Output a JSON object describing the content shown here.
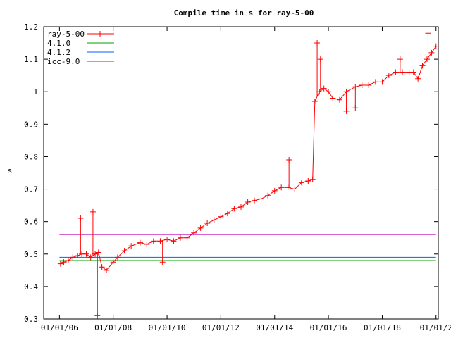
{
  "chart_data": {
    "type": "line",
    "title": "Compile time in s for ray-5-00",
    "xlabel": "",
    "ylabel": "s",
    "ylim": [
      0.3,
      1.2
    ],
    "yticks": [
      "0.3",
      "0.4",
      "0.5",
      "0.6",
      "0.7",
      "0.8",
      "0.9",
      "1",
      "1.1",
      "1.2"
    ],
    "xlim": [
      "2005-06-01",
      "2020-02-01"
    ],
    "xticks": [
      {
        "date": "2006-01-01",
        "label": "01/01/06"
      },
      {
        "date": "2008-01-01",
        "label": "01/01/08"
      },
      {
        "date": "2010-01-01",
        "label": "01/01/10"
      },
      {
        "date": "2012-01-01",
        "label": "01/01/12"
      },
      {
        "date": "2014-01-01",
        "label": "01/01/14"
      },
      {
        "date": "2016-01-01",
        "label": "01/01/16"
      },
      {
        "date": "2018-01-01",
        "label": "01/01/18"
      },
      {
        "date": "2020-01-01",
        "label": "01/01/2"
      }
    ],
    "grid": false,
    "legend_position": "top-left",
    "series": [
      {
        "name": "ray-5-00",
        "color": "#ff0000",
        "marker": "plus",
        "points": [
          [
            "2006-01-15",
            0.47
          ],
          [
            "2006-03-01",
            0.475
          ],
          [
            "2006-05-01",
            0.48
          ],
          [
            "2006-07-01",
            0.49
          ],
          [
            "2006-09-01",
            0.495
          ],
          [
            "2006-11-01",
            0.5
          ],
          [
            "2007-01-01",
            0.5
          ],
          [
            "2007-03-01",
            0.49
          ],
          [
            "2007-05-01",
            0.5
          ],
          [
            "2007-06-15",
            0.505
          ],
          [
            "2007-08-01",
            0.46
          ],
          [
            "2007-10-01",
            0.45
          ],
          [
            "2008-01-01",
            0.475
          ],
          [
            "2008-03-01",
            0.49
          ],
          [
            "2008-06-01",
            0.51
          ],
          [
            "2008-09-01",
            0.525
          ],
          [
            "2009-01-01",
            0.535
          ],
          [
            "2009-04-01",
            0.53
          ],
          [
            "2009-07-01",
            0.54
          ],
          [
            "2009-10-01",
            0.54
          ],
          [
            "2010-01-01",
            0.545
          ],
          [
            "2010-04-01",
            0.54
          ],
          [
            "2010-07-01",
            0.55
          ],
          [
            "2010-10-01",
            0.55
          ],
          [
            "2011-01-01",
            0.565
          ],
          [
            "2011-04-01",
            0.58
          ],
          [
            "2011-07-01",
            0.595
          ],
          [
            "2011-10-01",
            0.605
          ],
          [
            "2012-01-01",
            0.615
          ],
          [
            "2012-04-01",
            0.625
          ],
          [
            "2012-07-01",
            0.64
          ],
          [
            "2012-10-01",
            0.645
          ],
          [
            "2013-01-01",
            0.66
          ],
          [
            "2013-04-01",
            0.665
          ],
          [
            "2013-07-01",
            0.67
          ],
          [
            "2013-10-01",
            0.68
          ],
          [
            "2014-01-01",
            0.695
          ],
          [
            "2014-04-01",
            0.705
          ],
          [
            "2014-07-01",
            0.705
          ],
          [
            "2014-10-01",
            0.7
          ],
          [
            "2015-01-01",
            0.72
          ],
          [
            "2015-04-01",
            0.725
          ],
          [
            "2015-06-01",
            0.73
          ],
          [
            "2015-07-01",
            0.97
          ],
          [
            "2015-09-01",
            1.0
          ],
          [
            "2015-11-01",
            1.01
          ],
          [
            "2016-01-01",
            1.0
          ],
          [
            "2016-03-01",
            0.98
          ],
          [
            "2016-06-01",
            0.975
          ],
          [
            "2016-09-01",
            1.0
          ],
          [
            "2017-01-01",
            1.015
          ],
          [
            "2017-04-01",
            1.02
          ],
          [
            "2017-07-01",
            1.02
          ],
          [
            "2017-10-01",
            1.03
          ],
          [
            "2018-01-01",
            1.03
          ],
          [
            "2018-04-01",
            1.05
          ],
          [
            "2018-07-01",
            1.06
          ],
          [
            "2018-10-01",
            1.06
          ],
          [
            "2019-01-01",
            1.06
          ],
          [
            "2019-03-01",
            1.06
          ],
          [
            "2019-05-01",
            1.04
          ],
          [
            "2019-07-01",
            1.08
          ],
          [
            "2019-09-01",
            1.1
          ],
          [
            "2019-11-01",
            1.12
          ],
          [
            "2020-01-01",
            1.14
          ]
        ],
        "outliers": [
          [
            "2006-10-15",
            0.61
          ],
          [
            "2007-04-01",
            0.63
          ],
          [
            "2007-06-01",
            0.31
          ],
          [
            "2009-11-01",
            0.475
          ],
          [
            "2014-07-15",
            0.79
          ],
          [
            "2015-08-01",
            1.15
          ],
          [
            "2015-09-15",
            1.1
          ],
          [
            "2018-09-01",
            1.1
          ],
          [
            "2019-09-15",
            1.18
          ],
          [
            "2016-09-01",
            0.94
          ],
          [
            "2017-01-01",
            0.95
          ]
        ]
      },
      {
        "name": "4.1.0",
        "color": "#00a000",
        "value": 0.48,
        "range": [
          "2006-01-01",
          "2019-12-31"
        ]
      },
      {
        "name": "4.1.2",
        "color": "#0060ff",
        "value": 0.49,
        "range": [
          "2006-01-01",
          "2019-12-31"
        ]
      },
      {
        "name": "icc-9.0",
        "color": "#c000c0",
        "value": 0.56,
        "range": [
          "2006-01-01",
          "2019-12-31"
        ]
      }
    ]
  }
}
